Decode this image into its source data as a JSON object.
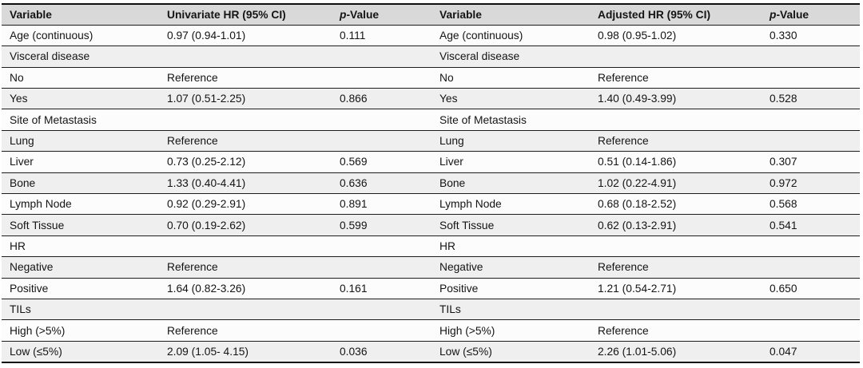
{
  "table": {
    "header": {
      "variable_left": "Variable",
      "univariate_hr": "Univariate HR (95% CI)",
      "p_italic_left": "p",
      "p_rest_left": "-Value",
      "variable_right": "Variable",
      "adjusted_hr": "Adjusted HR (95% CI)",
      "p_italic_right": "p",
      "p_rest_right": "-Value"
    },
    "column_keys": [
      "variable-left",
      "univariate-hr",
      "p-value-left",
      "variable-right",
      "adjusted-hr",
      "p-value-right"
    ],
    "rows": [
      [
        "Age (continuous)",
        "0.97 (0.94-1.01)",
        "0.111",
        "Age (continuous)",
        "0.98 (0.95-1.02)",
        "0.330"
      ],
      [
        "Visceral disease",
        "",
        "",
        "Visceral disease",
        "",
        ""
      ],
      [
        "No",
        "Reference",
        "",
        "No",
        "Reference",
        ""
      ],
      [
        "Yes",
        "1.07 (0.51-2.25)",
        "0.866",
        "Yes",
        "1.40 (0.49-3.99)",
        "0.528"
      ],
      [
        "Site of Metastasis",
        "",
        "",
        "Site of Metastasis",
        "",
        ""
      ],
      [
        "Lung",
        "Reference",
        "",
        "Lung",
        "Reference",
        ""
      ],
      [
        "Liver",
        "0.73 (0.25-2.12)",
        "0.569",
        "Liver",
        "0.51 (0.14-1.86)",
        "0.307"
      ],
      [
        "Bone",
        "1.33 (0.40-4.41)",
        "0.636",
        "Bone",
        "1.02 (0.22-4.91)",
        "0.972"
      ],
      [
        "Lymph Node",
        "0.92 (0.29-2.91)",
        "0.891",
        "Lymph Node",
        "0.68 (0.18-2.52)",
        "0.568"
      ],
      [
        "Soft Tissue",
        "0.70 (0.19-2.62)",
        "0.599",
        "Soft Tissue",
        "0.62 (0.13-2.91)",
        "0.541"
      ],
      [
        "HR",
        "",
        "",
        "HR",
        "",
        ""
      ],
      [
        "Negative",
        "Reference",
        "",
        "Negative",
        "Reference",
        ""
      ],
      [
        "Positive",
        "1.64 (0.82-3.26)",
        "0.161",
        "Positive",
        "1.21 (0.54-2.71)",
        "0.650"
      ],
      [
        "TILs",
        "",
        "",
        "TILs",
        "",
        ""
      ],
      [
        "High (>5%)",
        "Reference",
        "",
        "High (>5%)",
        "Reference",
        ""
      ],
      [
        "Low (≤5%)",
        "2.09 (1.05- 4.15)",
        "0.036",
        "Low (≤5%)",
        "2.26 (1.01-5.06)",
        "0.047"
      ]
    ]
  },
  "colors": {
    "header_bg": "#d9d9d9",
    "row_white_bg": "#fcfcfc",
    "row_gray_bg": "#efefef",
    "rule": "#1c1c1c",
    "outer_rule": "#101010"
  }
}
